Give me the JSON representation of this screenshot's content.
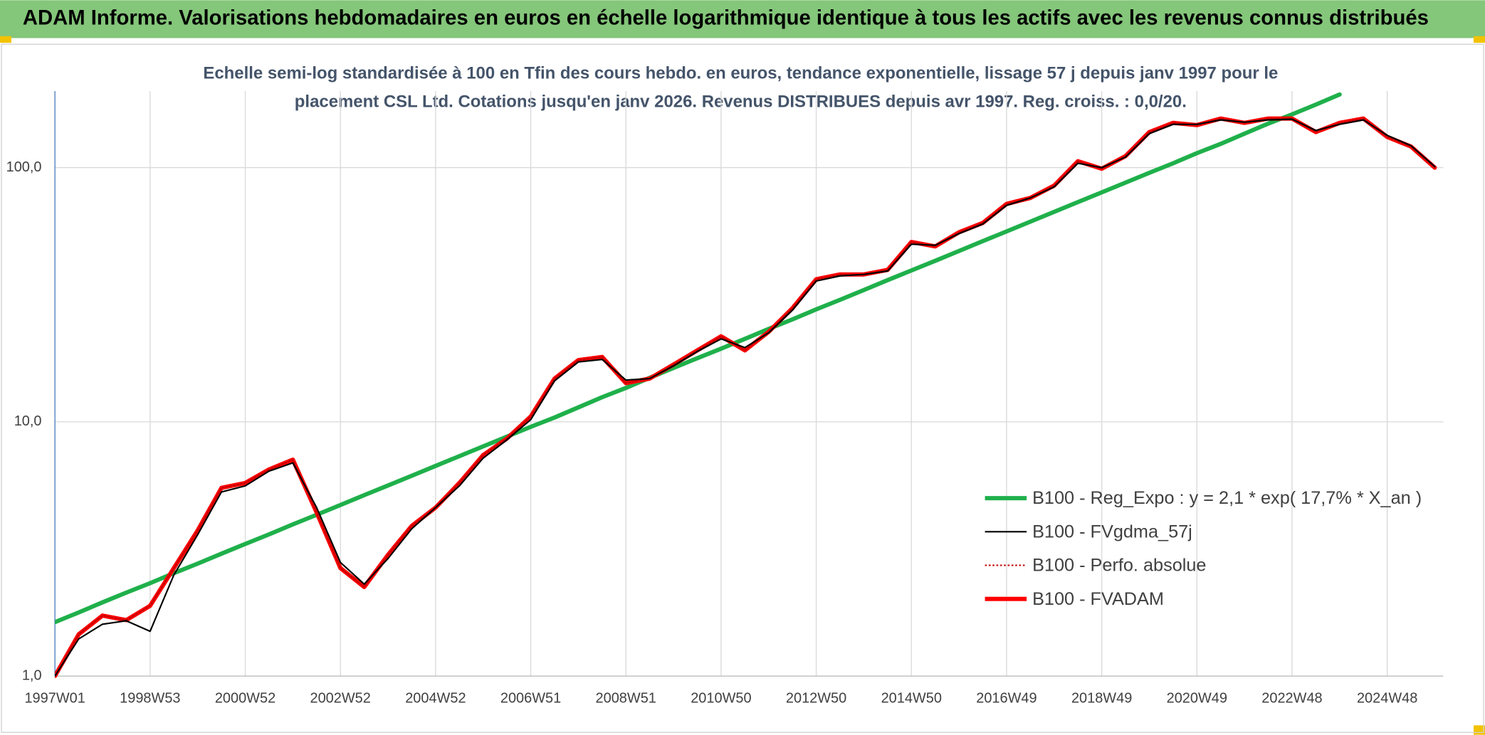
{
  "chart_data": {
    "type": "line",
    "title": "ADAM Informe. Valorisations hebdomadaires en euros en échelle logarithmique identique à tous les actifs avec les revenus connus distribués",
    "subtitle": [
      "Echelle semi-log standardisée à 100 en Tfin des cours hebdo. en euros, tendance exponentielle, lissage 57 j depuis janv 1997 pour le",
      "placement CSL Ltd. Cotations jusqu'en janv 2026. Revenus DISTRIBUES depuis avr 1997. Reg. croiss. : 0,0/20."
    ],
    "x": [
      "1997W01",
      null,
      null,
      null,
      "1998W53",
      null,
      null,
      null,
      "2000W52",
      null,
      null,
      null,
      "2002W52",
      null,
      null,
      null,
      "2004W52",
      null,
      null,
      null,
      "2006W51",
      null,
      null,
      null,
      "2008W51",
      null,
      null,
      null,
      "2010W50",
      null,
      null,
      null,
      "2012W50",
      null,
      null,
      null,
      "2014W50",
      null,
      null,
      null,
      "2016W49",
      null,
      null,
      null,
      "2018W49",
      null,
      null,
      null,
      "2020W49",
      null,
      null,
      null,
      "2022W48",
      null,
      null,
      null,
      "2024W48",
      null,
      null
    ],
    "log_scale": true,
    "ylim": [
      1,
      200
    ],
    "yticks": [
      {
        "value": 1,
        "label": "1,0"
      },
      {
        "value": 10,
        "label": "10,0"
      },
      {
        "value": 100,
        "label": "100,0"
      }
    ],
    "grid": true,
    "legend": "lower right",
    "series": [
      {
        "name": "B100 - Reg_Expo : y = 2,1 * exp( 17,7% *  X_an )",
        "color": "#1fb04b",
        "style": "thick",
        "values": [
          1.63,
          1.78,
          1.95,
          2.13,
          2.32,
          2.54,
          2.77,
          3.03,
          3.31,
          3.61,
          3.95,
          4.31,
          4.71,
          5.15,
          5.62,
          6.14,
          6.71,
          7.33,
          8.01,
          8.75,
          9.56,
          10.4,
          11.4,
          12.5,
          13.6,
          14.9,
          16.3,
          17.8,
          19.4,
          21.2,
          23.2,
          25.3,
          27.7,
          30.2,
          33.0,
          36.1,
          39.4,
          43.0,
          47.0,
          51.4,
          56.1,
          61.3,
          67.0,
          73.2,
          79.9,
          87.3,
          95.4,
          104,
          114,
          124,
          136,
          149,
          162,
          177,
          194,
          null,
          null,
          null,
          null
        ]
      },
      {
        "name": "B100 - FVgdma_57j",
        "color": "#000000",
        "style": "thin",
        "values": [
          1.0,
          1.4,
          1.6,
          1.65,
          1.5,
          2.5,
          3.6,
          5.3,
          5.6,
          6.4,
          6.9,
          4.6,
          2.8,
          2.3,
          2.9,
          3.8,
          4.6,
          5.6,
          7.2,
          8.5,
          10.2,
          14.5,
          17.2,
          17.6,
          14.6,
          14.8,
          16.6,
          18.9,
          21.2,
          19.6,
          22.4,
          27.5,
          35.8,
          37.5,
          38.0,
          39.2,
          50.0,
          49.5,
          55.0,
          60.0,
          71.0,
          76.0,
          84.0,
          104,
          100,
          110,
          136,
          148,
          148,
          154,
          151,
          154,
          155,
          140,
          148,
          154,
          134,
          122,
          101
        ]
      },
      {
        "name": "B100 - Perfo. absolue",
        "color": "#c00000",
        "style": "dotted",
        "values": [
          1.0,
          1.46,
          1.73,
          1.66,
          1.89,
          2.66,
          3.74,
          5.5,
          5.75,
          6.5,
          7.1,
          4.4,
          2.66,
          2.24,
          3.0,
          3.9,
          4.6,
          5.75,
          7.4,
          8.6,
          10.5,
          14.8,
          17.5,
          18,
          14.2,
          14.8,
          16.8,
          19.1,
          21.7,
          19.1,
          22.6,
          28,
          36.4,
          38,
          38,
          39.6,
          51,
          49,
          55.7,
          60.6,
          72,
          76,
          85,
          106,
          99,
          111,
          138,
          150,
          147,
          156,
          150,
          156,
          156,
          138,
          150,
          156,
          132,
          121,
          100
        ]
      },
      {
        "name": "B100 - FVADAM",
        "color": "#ff0000",
        "style": "thick",
        "values": [
          1.0,
          1.46,
          1.73,
          1.66,
          1.89,
          2.66,
          3.74,
          5.5,
          5.75,
          6.5,
          7.1,
          4.4,
          2.66,
          2.24,
          3.0,
          3.9,
          4.6,
          5.75,
          7.4,
          8.6,
          10.5,
          14.8,
          17.5,
          18,
          14.2,
          14.8,
          16.8,
          19.1,
          21.7,
          19.1,
          22.6,
          28,
          36.4,
          38,
          38,
          39.6,
          51,
          49,
          55.7,
          60.6,
          72,
          76,
          85,
          106,
          99,
          111,
          138,
          150,
          147,
          156,
          150,
          156,
          156,
          138,
          150,
          156,
          132,
          121,
          100
        ]
      }
    ]
  }
}
